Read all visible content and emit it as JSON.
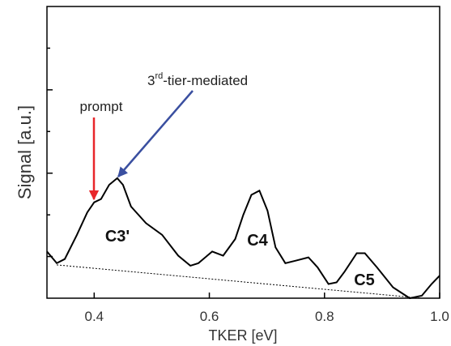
{
  "chart_data": {
    "type": "line",
    "xlabel": "TKER [eV]",
    "ylabel": "Signal [a.u.]",
    "xlim": [
      0.318,
      1.0
    ],
    "xticks": [
      0.4,
      0.6,
      0.8,
      {
        "value": 1,
        "label": "1.0"
      }
    ],
    "ylim": [
      0,
      3.5
    ],
    "yticks": [
      0.5,
      1,
      1.5,
      2,
      2.5,
      3
    ],
    "series": [
      {
        "color": "#000000",
        "x": [
          0.318,
          0.335,
          0.349,
          0.37,
          0.388,
          0.4,
          0.412,
          0.426,
          0.44,
          0.45,
          0.464,
          0.49,
          0.518,
          0.546,
          0.567,
          0.581,
          0.605,
          0.624,
          0.645,
          0.659,
          0.673,
          0.687,
          0.701,
          0.715,
          0.732,
          0.75,
          0.772,
          0.788,
          0.807,
          0.821,
          0.835,
          0.856,
          0.87,
          0.891,
          0.919,
          0.948,
          0.969,
          0.986,
          1.0
        ],
        "values": [
          0.56,
          0.42,
          0.47,
          0.76,
          1.03,
          1.15,
          1.19,
          1.36,
          1.44,
          1.36,
          1.1,
          0.9,
          0.76,
          0.51,
          0.39,
          0.42,
          0.56,
          0.51,
          0.71,
          1.0,
          1.24,
          1.29,
          1.05,
          0.61,
          0.42,
          0.45,
          0.49,
          0.37,
          0.17,
          0.19,
          0.32,
          0.54,
          0.54,
          0.37,
          0.13,
          0,
          0.03,
          0.17,
          0.27
        ]
      },
      {
        "color": "#000000",
        "dash": true,
        "x": [
          0.335,
          0.969
        ],
        "values": [
          0.4,
          0
        ]
      }
    ],
    "annotations": [
      {
        "text": "prompt",
        "color": "#e8262a"
      },
      {
        "text": "3",
        "sup": "rd",
        "rest": "-tier-mediated",
        "color": "#3a4fa0"
      },
      {
        "text": "C3'"
      },
      {
        "text": "C4"
      },
      {
        "text": "C5"
      }
    ]
  }
}
